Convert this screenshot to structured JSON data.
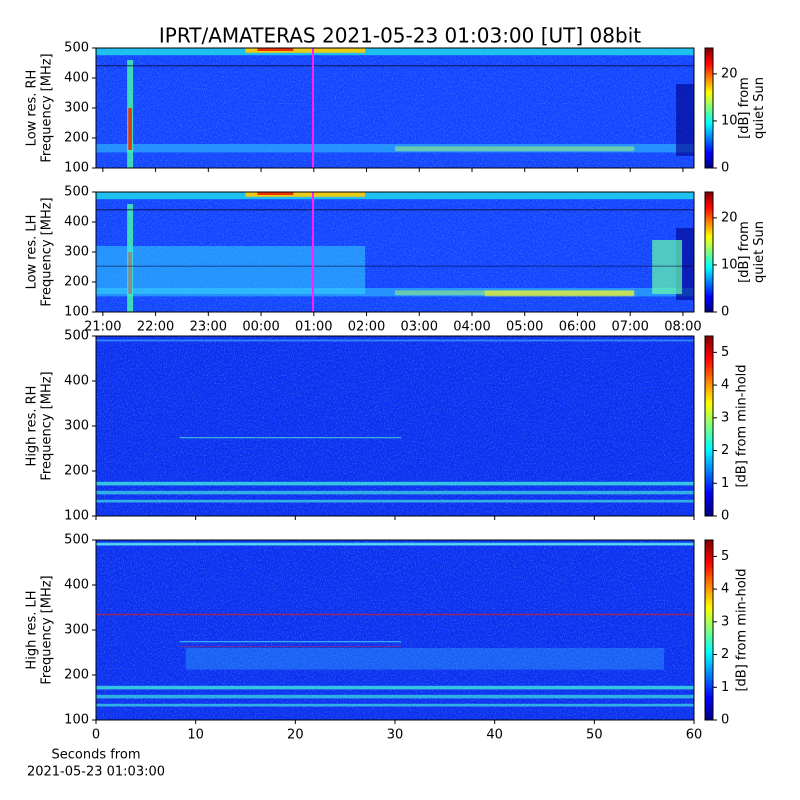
{
  "chart_data": [
    {
      "type": "heatmap",
      "title": "IPRT/AMATERAS 2021-05-23 01:03:00 [UT]   08bit",
      "ylabel": [
        "Low res. RH",
        "Frequency [MHz]"
      ],
      "ylim": [
        100,
        500
      ],
      "yticks": [
        100,
        200,
        300,
        400,
        500
      ],
      "xlim": [
        20.87,
        32.21
      ],
      "colorbar_label": [
        "[dB] from",
        "quiet Sun"
      ],
      "clim": [
        0,
        25.5
      ],
      "cticks": [
        0,
        10,
        20
      ],
      "colormap": "jet"
    },
    {
      "type": "heatmap",
      "ylabel": [
        "Low res. LH",
        "Frequency [MHz]"
      ],
      "ylim": [
        100,
        500
      ],
      "yticks": [
        100,
        200,
        300,
        400,
        500
      ],
      "xlim": [
        20.87,
        32.21
      ],
      "xticks": [
        {
          "value": 21,
          "label": "21:00"
        },
        {
          "value": 22,
          "label": "22:00"
        },
        {
          "value": 23,
          "label": "23:00"
        },
        {
          "value": 24,
          "label": "00:00"
        },
        {
          "value": 25,
          "label": "01:00"
        },
        {
          "value": 26,
          "label": "02:00"
        },
        {
          "value": 27,
          "label": "03:00"
        },
        {
          "value": 28,
          "label": "04:00"
        },
        {
          "value": 29,
          "label": "05:00"
        },
        {
          "value": 30,
          "label": "06:00"
        },
        {
          "value": 31,
          "label": "07:00"
        },
        {
          "value": 32,
          "label": "08:00"
        }
      ],
      "colorbar_label": [
        "[dB] from",
        "quiet Sun"
      ],
      "clim": [
        0,
        25.5
      ],
      "cticks": [
        0,
        10,
        20
      ],
      "colormap": "jet"
    },
    {
      "type": "heatmap",
      "ylabel": [
        "High res. RH",
        "Frequency [MHz]"
      ],
      "ylim": [
        100,
        500
      ],
      "yticks": [
        100,
        200,
        300,
        400,
        500
      ],
      "xlim": [
        0,
        60
      ],
      "colorbar_label": [
        "[dB] from min-hold"
      ],
      "clim": [
        0,
        5.5
      ],
      "cticks": [
        0,
        1,
        2,
        3,
        4,
        5
      ],
      "colormap": "jet"
    },
    {
      "type": "heatmap",
      "ylabel": [
        "High res. LH",
        "Frequency [MHz]"
      ],
      "ylim": [
        100,
        500
      ],
      "yticks": [
        100,
        200,
        300,
        400,
        500
      ],
      "xlim": [
        0,
        60
      ],
      "xticks": [
        0,
        10,
        20,
        30,
        40,
        50,
        60
      ],
      "xlabel": [
        "Seconds from",
        "2021-05-23 01:03:00"
      ],
      "colorbar_label": [
        "[dB] from min-hold"
      ],
      "clim": [
        0,
        5.5
      ],
      "cticks": [
        0,
        1,
        2,
        3,
        4,
        5
      ],
      "colormap": "jet"
    }
  ]
}
